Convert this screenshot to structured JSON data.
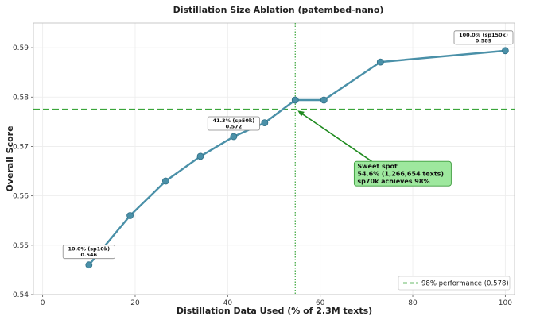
{
  "chart_data": {
    "type": "line",
    "title": "Distillation Size Ablation (patembed-nano)",
    "xlabel": "Distillation Data Used (% of 2.3M texts)",
    "ylabel": "Overall Score",
    "xlim": [
      -2,
      102
    ],
    "ylim": [
      0.54,
      0.595
    ],
    "xticks": [
      0,
      20,
      40,
      60,
      80,
      100
    ],
    "yticks": [
      0.54,
      0.55,
      0.56,
      0.57,
      0.58,
      0.59
    ],
    "xtick_labels": [
      "0",
      "20",
      "40",
      "60",
      "80",
      "100"
    ],
    "ytick_labels": [
      "0.54",
      "0.55",
      "0.56",
      "0.57",
      "0.58",
      "0.59"
    ],
    "grid": true,
    "series": [
      {
        "x": [
          10.0,
          18.9,
          26.6,
          34.1,
          41.3,
          48.0,
          54.6,
          60.8,
          73.0,
          100.0
        ],
        "y": [
          0.546,
          0.556,
          0.563,
          0.568,
          0.572,
          0.5748,
          0.5794,
          0.5794,
          0.5871,
          0.5894
        ],
        "color": "#4a90a8"
      }
    ],
    "reference_line": {
      "y": 0.5775,
      "label": "98% performance (0.578)",
      "color": "#3aa53a"
    },
    "vertical_line": {
      "x": 54.6,
      "color": "#3aa53a"
    },
    "annotations": [
      {
        "line1": "10.0% (sp10k)",
        "line2": "0.546",
        "x": 10.0,
        "y": 0.546
      },
      {
        "line1": "41.3% (sp50k)",
        "line2": "0.572",
        "x": 41.3,
        "y": 0.572
      },
      {
        "line1": "100.0% (sp150k)",
        "line2": "0.589",
        "x": 100.0,
        "y": 0.5894
      }
    ],
    "callout": {
      "lines": [
        "Sweet spot",
        "54.6% (1,266,654 texts)",
        "sp70k achieves 98%"
      ],
      "target_x": 54.6,
      "target_y": 0.5776,
      "text_x": 67.0,
      "text_y": 0.5665,
      "box_color": "#9ee89e",
      "border_color": "#3a9a3a",
      "arrow_color": "#1e8a1e"
    },
    "legend_position": "lower-right"
  }
}
